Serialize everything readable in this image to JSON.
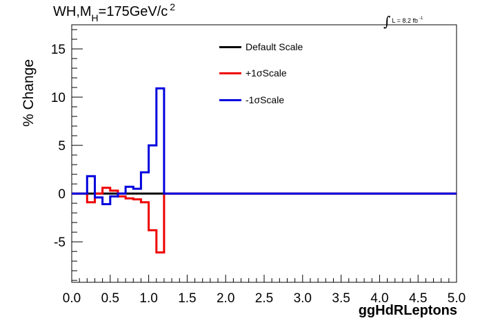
{
  "title": {
    "prefix": "WH,M",
    "subscript": "H",
    "main": "=175GeV/c",
    "superscript": "2"
  },
  "lumi": {
    "integral": "∫",
    "text": "L = 8.2 fb",
    "superscript": "-1"
  },
  "chart_data": {
    "type": "line",
    "xlabel": "ggHdRLeptons",
    "ylabel": "% Change",
    "xlim": [
      0.0,
      5.0
    ],
    "ylim": [
      -9.2,
      17.5
    ],
    "x_ticks": [
      "0.0",
      "0.5",
      "1.0",
      "1.5",
      "2.0",
      "2.5",
      "3.0",
      "3.5",
      "4.0",
      "4.5",
      "5.0"
    ],
    "y_ticks": [
      {
        "value": -5,
        "label": "-5"
      },
      {
        "value": 0,
        "label": "0"
      },
      {
        "value": 5,
        "label": "5"
      },
      {
        "value": 10,
        "label": "10"
      },
      {
        "value": 15,
        "label": "15"
      }
    ],
    "bin_width": 0.1,
    "legend_position": "top-center",
    "series": [
      {
        "name": "Default Scale",
        "color": "#000000",
        "values": [
          0,
          0,
          0,
          0,
          0,
          0,
          0,
          0,
          0,
          0,
          0,
          0,
          0,
          0,
          0,
          0,
          0,
          0,
          0,
          0,
          0,
          0,
          0,
          0,
          0,
          0,
          0,
          0,
          0,
          0,
          0,
          0,
          0,
          0,
          0,
          0,
          0,
          0,
          0,
          0,
          0,
          0,
          0,
          0,
          0,
          0,
          0,
          0,
          0,
          0
        ]
      },
      {
        "name": "+1σScale",
        "color": "#ee0000",
        "values": [
          0,
          0,
          -0.9,
          0,
          0.6,
          0.3,
          -0.3,
          -0.5,
          -0.6,
          -0.9,
          -3.8,
          -6.1,
          0,
          0,
          0,
          0,
          0,
          0,
          0,
          0,
          0,
          0,
          0,
          0,
          0,
          0,
          0,
          0,
          0,
          0,
          0,
          0,
          0,
          0,
          0,
          0,
          0,
          0,
          0,
          0,
          0,
          0,
          0,
          0,
          0,
          0,
          0,
          0,
          0,
          0
        ]
      },
      {
        "name": "-1σScale",
        "color": "#0000dd",
        "values": [
          0,
          0,
          1.8,
          -0.4,
          -1.1,
          -0.3,
          0,
          0.7,
          0.5,
          2.2,
          5.0,
          10.9,
          0,
          0,
          0,
          0,
          0,
          0,
          0,
          0,
          0,
          0,
          0,
          0,
          0,
          0,
          0,
          0,
          0,
          0,
          0,
          0,
          0,
          0,
          0,
          0,
          0,
          0,
          0,
          0,
          0,
          0,
          0,
          0,
          0,
          0,
          0,
          0,
          0,
          0
        ]
      }
    ]
  }
}
